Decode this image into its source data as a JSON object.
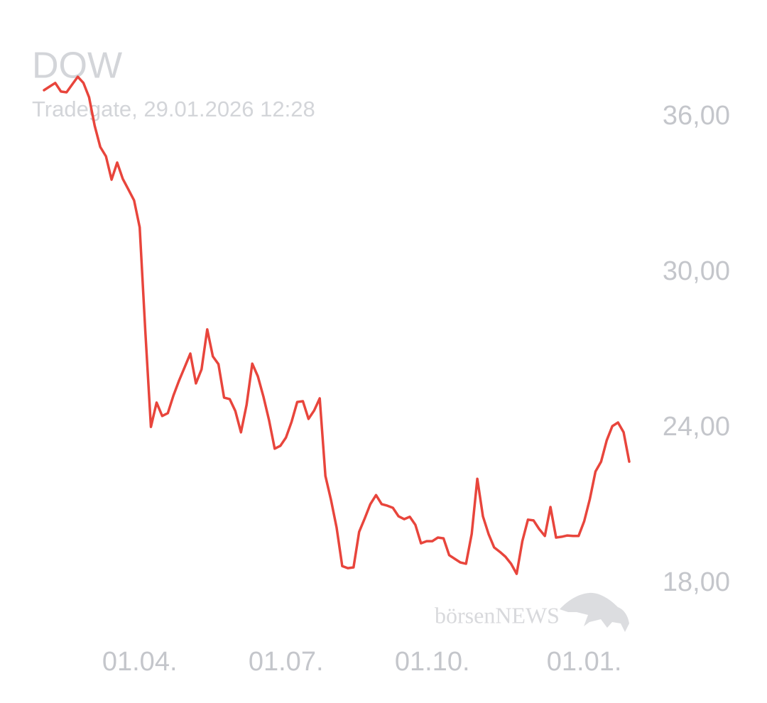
{
  "chart_data": {
    "type": "line",
    "title": "DOW",
    "subtitle": "Tradegate, 29.01.2026 12:28",
    "watermark": "börsenNEWS",
    "color": "#e8453c",
    "categories": [
      null,
      null,
      null,
      null,
      null,
      null,
      null,
      null,
      null,
      null,
      null,
      null,
      null,
      null,
      null,
      null,
      null,
      "01.04.",
      null,
      null,
      null,
      null,
      null,
      null,
      null,
      null,
      null,
      null,
      null,
      null,
      null,
      null,
      null,
      null,
      null,
      null,
      null,
      null,
      null,
      null,
      null,
      null,
      null,
      "01.07.",
      null,
      null,
      null,
      null,
      null,
      null,
      null,
      null,
      null,
      null,
      null,
      null,
      null,
      null,
      null,
      null,
      null,
      null,
      null,
      null,
      null,
      null,
      null,
      null,
      null,
      "01.10.",
      null,
      null,
      null,
      null,
      null,
      null,
      null,
      null,
      null,
      null,
      null,
      null,
      null,
      null,
      null,
      null,
      null,
      null,
      null,
      null,
      null,
      null,
      null,
      null,
      null,
      null,
      "01.01.",
      null,
      null,
      null,
      null,
      null,
      null,
      null,
      null
    ],
    "values": [
      37.04,
      37.18,
      37.32,
      36.99,
      36.96,
      37.26,
      37.56,
      37.32,
      36.77,
      35.67,
      34.85,
      34.49,
      33.59,
      34.25,
      33.62,
      33.21,
      32.79,
      31.75,
      27.75,
      24.05,
      24.99,
      24.47,
      24.58,
      25.26,
      25.84,
      26.36,
      26.88,
      25.73,
      26.27,
      27.81,
      26.77,
      26.47,
      25.18,
      25.12,
      24.66,
      23.84,
      24.9,
      26.49,
      26.0,
      25.21,
      24.3,
      23.21,
      23.32,
      23.64,
      24.25,
      25.01,
      25.04,
      24.36,
      24.68,
      25.15,
      22.16,
      21.23,
      20.16,
      18.68,
      18.6,
      18.63,
      20.0,
      20.52,
      21.07,
      21.42,
      21.07,
      21.01,
      20.93,
      20.6,
      20.49,
      20.58,
      20.27,
      19.56,
      19.64,
      19.64,
      19.78,
      19.75,
      19.1,
      18.96,
      18.82,
      18.77,
      19.92,
      22.05,
      20.6,
      19.92,
      19.4,
      19.23,
      19.04,
      18.77,
      18.38,
      19.64,
      20.47,
      20.44,
      20.11,
      19.84,
      20.96,
      19.78,
      19.81,
      19.86,
      19.84,
      19.84,
      20.41,
      21.26,
      22.33,
      22.71,
      23.53,
      24.08,
      24.22,
      23.84,
      22.71
    ],
    "ylim": [
      16,
      38
    ],
    "yticks": [
      {
        "value": 18,
        "label": "18,00"
      },
      {
        "value": 24,
        "label": "24,00"
      },
      {
        "value": 30,
        "label": "30,00"
      },
      {
        "value": 36,
        "label": "36,00"
      }
    ],
    "grid": false
  }
}
